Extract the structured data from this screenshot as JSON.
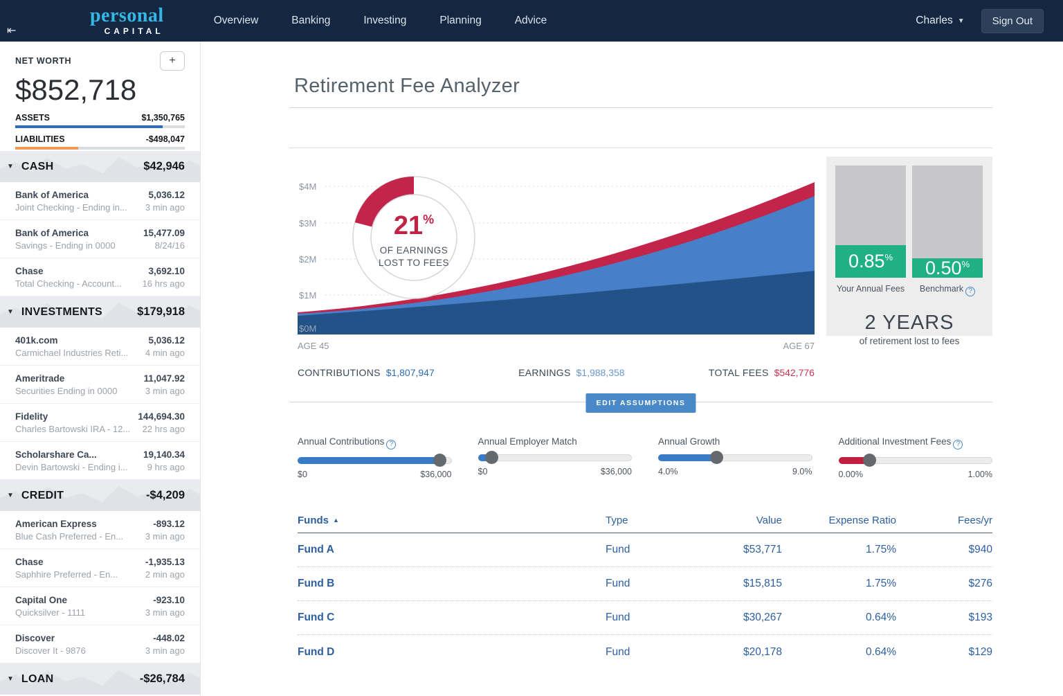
{
  "brand": {
    "name_top": "personal",
    "name_bottom": "CAPITAL",
    "accent_color": "#35b7e5"
  },
  "nav": {
    "collapse_icon": "⇤",
    "items": [
      "Overview",
      "Banking",
      "Investing",
      "Planning",
      "Advice"
    ],
    "user": "Charles",
    "user_caret": "▼",
    "sign_out": "Sign Out"
  },
  "sidebar": {
    "net_worth": {
      "label": "NET WORTH",
      "value": "$852,718",
      "add_button": "+",
      "assets": {
        "label": "ASSETS",
        "value": "$1,350,765",
        "bar_pct": 87,
        "bar_color": "#2e6cc0"
      },
      "liabilities": {
        "label": "LIABILITIES",
        "value": "-$498,047",
        "bar_pct": 37,
        "bar_color": "#f09a56"
      }
    },
    "sections": [
      {
        "label": "CASH",
        "value": "$42,946",
        "accounts": [
          {
            "name": "Bank of America",
            "detail": "Joint Checking - Ending in...",
            "amount": "5,036.12",
            "time": "3 min ago"
          },
          {
            "name": "Bank of America",
            "detail": "Savings - Ending in 0000",
            "amount": "15,477.09",
            "time": "8/24/16"
          },
          {
            "name": "Chase",
            "detail": "Total Checking - Account...",
            "amount": "3,692.10",
            "time": "16 hrs ago"
          }
        ]
      },
      {
        "label": "INVESTMENTS",
        "value": "$179,918",
        "accounts": [
          {
            "name": "401k.com",
            "detail": "Carmichael Industries Reti...",
            "amount": "5,036.12",
            "time": "4 min ago"
          },
          {
            "name": "Ameritrade",
            "detail": "Securities Ending in 0000",
            "amount": "11,047.92",
            "time": "3 min ago"
          },
          {
            "name": "Fidelity",
            "detail": "Charles Bartowski IRA - 12...",
            "amount": "144,694.30",
            "time": "22 hrs ago"
          },
          {
            "name": "Scholarshare Ca...",
            "detail": "Devin Bartowski - Ending i...",
            "amount": "19,140.34",
            "time": "9 hrs ago"
          }
        ]
      },
      {
        "label": "CREDIT",
        "value": "-$4,209",
        "accounts": [
          {
            "name": "American Express",
            "detail": "Blue Cash Preferred - En...",
            "amount": "-893.12",
            "time": "3 min ago"
          },
          {
            "name": "Chase",
            "detail": "Saphhire Preferred - En...",
            "amount": "-1,935.13",
            "time": "2 min ago"
          },
          {
            "name": "Capital One",
            "detail": "Quicksilver - 1111",
            "amount": "-923.10",
            "time": "3 min ago"
          },
          {
            "name": "Discover",
            "detail": "Discover It - 9876",
            "amount": "-448.02",
            "time": "3 min ago"
          }
        ]
      },
      {
        "label": "LOAN",
        "value": "-$26,784",
        "accounts": []
      }
    ]
  },
  "main": {
    "title": "Retirement Fee Analyzer",
    "stats": [
      {
        "label": "CONTRIBUTIONS",
        "value": "$1,807,947",
        "color": "#2e6cb5"
      },
      {
        "label": "EARNINGS",
        "value": "$1,988,358",
        "color": "#6798d2"
      },
      {
        "label": "TOTAL FEES",
        "value": "$542,776",
        "color": "#cc3352"
      }
    ],
    "edit_assumptions": "EDIT ASSUMPTIONS",
    "sliders": [
      {
        "label": "Annual Contributions",
        "help": true,
        "min": "$0",
        "max": "$36,000",
        "pct": 93,
        "fill": "#3a7bc8"
      },
      {
        "label": "Annual Employer Match",
        "help": false,
        "min": "$0",
        "max": "$36,000",
        "pct": 9,
        "fill": "#3a7bc8"
      },
      {
        "label": "Annual Growth",
        "help": false,
        "min": "4.0%",
        "max": "9.0%",
        "pct": 38,
        "fill": "#3a7bc8"
      },
      {
        "label": "Additional Investment Fees",
        "help": true,
        "min": "0.00%",
        "max": "1.00%",
        "pct": 20,
        "fill": "#c0203f"
      }
    ],
    "table": {
      "headers": [
        "Funds",
        "Type",
        "Value",
        "Expense Ratio",
        "Fees/yr"
      ],
      "sort_icon": "▲",
      "rows": [
        [
          "Fund A",
          "Fund",
          "$53,771",
          "1.75%",
          "$940"
        ],
        [
          "Fund B",
          "Fund",
          "$15,815",
          "1.75%",
          "$276"
        ],
        [
          "Fund C",
          "Fund",
          "$30,267",
          "0.64%",
          "$193"
        ],
        [
          "Fund D",
          "Fund",
          "$20,178",
          "0.64%",
          "$129"
        ]
      ]
    }
  },
  "fee_panel": {
    "green": "#1fb183",
    "your_fees": {
      "value": "0.85",
      "unit": "%",
      "label": "Your Annual Fees",
      "green_pct": 29
    },
    "benchmark": {
      "value": "0.50",
      "unit": "%",
      "label": "Benchmark",
      "green_pct": 17,
      "help_icon": "?"
    },
    "years": {
      "value": "2 YEARS",
      "caption": "of retirement lost to fees"
    }
  },
  "chart_data": {
    "type": "area",
    "title": "Retirement projection with fees",
    "x_range": [
      "AGE 45",
      "AGE 67"
    ],
    "yticks": [
      "$4M",
      "$3M",
      "$2M",
      "$1M",
      "$0M"
    ],
    "ylim": [
      0,
      4000000
    ],
    "grid": "dashed-horizontal",
    "series": [
      {
        "name": "Contributions",
        "total": 1807947,
        "color": "#235289",
        "shape": "near-linear growth from ~$0.5M at age 45 to ~$1.8M at age 67"
      },
      {
        "name": "Earnings",
        "total": 1988358,
        "color": "#477fc8",
        "shape": "exponential growth stacked above contributions, total ~$3.8M at age 67"
      },
      {
        "name": "Fees",
        "total": 542776,
        "color": "#c2244a",
        "shape": "thin band on top widening toward age 67"
      }
    ],
    "donut": {
      "pct": "21",
      "unit": "%",
      "label_line1": "OF EARNINGS",
      "label_line2": "LOST TO FEES",
      "color": "#bf2348"
    }
  }
}
